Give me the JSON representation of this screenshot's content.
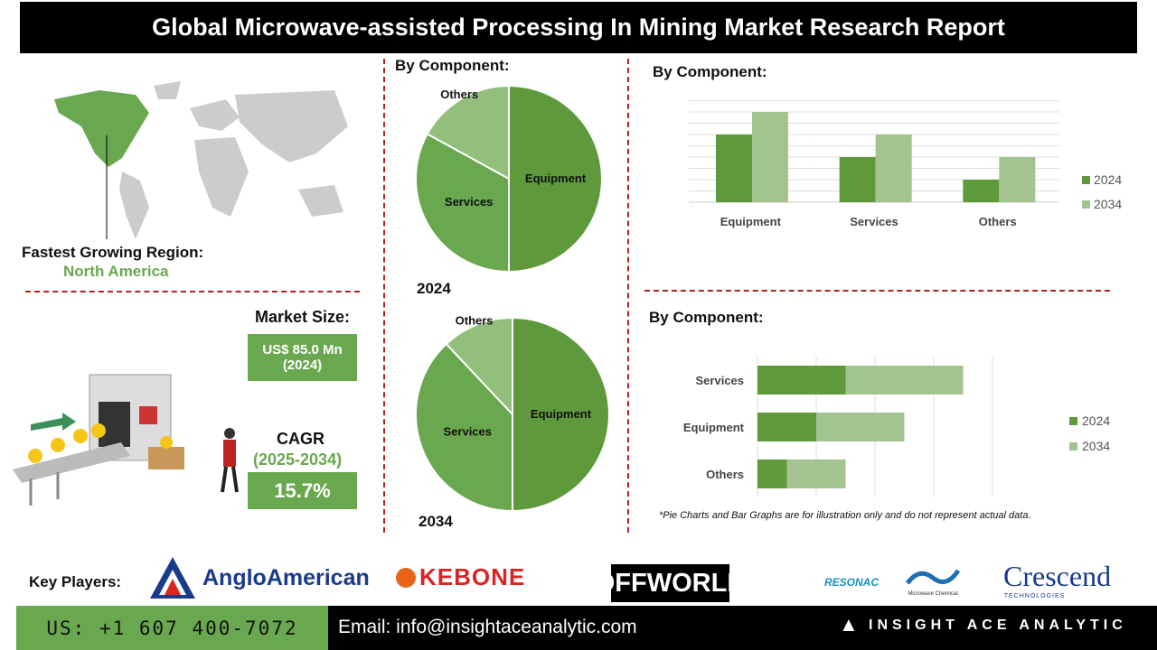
{
  "title": "Global Microwave-assisted Processing In Mining Market Research Report",
  "region": {
    "label": "Fastest Growing Region:",
    "value": "North America"
  },
  "market_size": {
    "label": "Market Size:",
    "value": "US$ 85.0 Mn",
    "year": "(2024)"
  },
  "cagr": {
    "label": "CAGR",
    "period": "(2025-2034)",
    "value": "15.7%"
  },
  "key_players_label": "Key Players:",
  "logos": [
    "AngloAmerican",
    "KEBONE",
    "OFFWORLD",
    "RESONAC",
    "Microwave Chemical",
    "Crescend",
    "TECHNOLOGIES"
  ],
  "footer": {
    "phone": "US: +1 607 400-7072",
    "email": "Email: info@insightaceanalytic.com",
    "brand": "INSIGHT ACE ANALYTIC"
  },
  "note": "*Pie Charts and Bar Graphs are for illustration only and do not represent actual data.",
  "colors": {
    "dark_green": "#5e9a3c",
    "light_green": "#a3c48e",
    "pie_light": "#93bf7d",
    "dash": "#b22222"
  },
  "chart_data": [
    {
      "type": "pie",
      "title": "By Component:",
      "caption": "2024",
      "labels": [
        "Equipment",
        "Services",
        "Others"
      ],
      "values": [
        50,
        33,
        17
      ]
    },
    {
      "type": "pie",
      "caption": "2034",
      "labels": [
        "Equipment",
        "Services",
        "Others"
      ],
      "values": [
        50,
        38,
        12
      ]
    },
    {
      "type": "bar",
      "title": "By Component:",
      "categories": [
        "Equipment",
        "Services",
        "Others"
      ],
      "series": [
        {
          "name": "2024",
          "values": [
            6,
            4,
            2
          ]
        },
        {
          "name": "2034",
          "values": [
            8,
            6,
            4
          ]
        }
      ],
      "ylim": [
        0,
        9
      ],
      "grid": true,
      "legend": "right"
    },
    {
      "type": "bar",
      "orientation": "horizontal",
      "stacked": true,
      "title": "By Component:",
      "categories": [
        "Services",
        "Equipment",
        "Others"
      ],
      "series": [
        {
          "name": "2024",
          "values": [
            1.5,
            1,
            0.5
          ]
        },
        {
          "name": "2034",
          "values": [
            2,
            1.5,
            1
          ]
        }
      ],
      "xlim": [
        0,
        4
      ],
      "grid": true,
      "legend": "right"
    }
  ]
}
